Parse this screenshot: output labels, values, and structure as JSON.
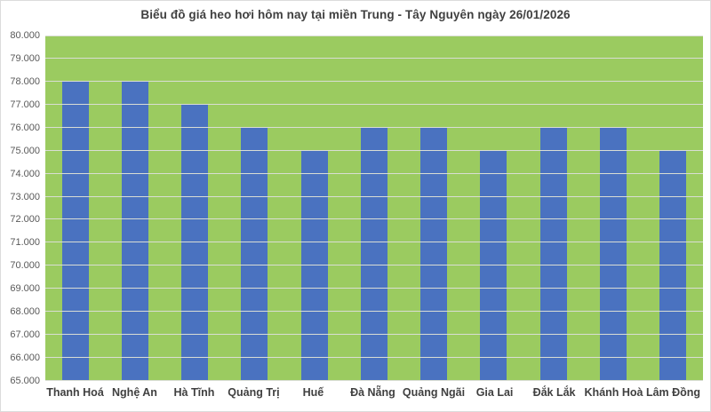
{
  "chart_data": {
    "type": "bar",
    "title": "Biểu đồ giá heo hơi hôm nay tại miền Trung - Tây Nguyên ngày 26/01/2026",
    "categories": [
      "Thanh Hoá",
      "Nghệ An",
      "Hà Tĩnh",
      "Quảng Trị",
      "Huế",
      "Đà Nẵng",
      "Quảng Ngãi",
      "Gia Lai",
      "Đắk Lắk",
      "Khánh Hoà",
      "Lâm Đồng"
    ],
    "values": [
      78000,
      78000,
      77000,
      76000,
      75000,
      76000,
      76000,
      75000,
      76000,
      76000,
      75000
    ],
    "xlabel": "",
    "ylabel": "",
    "ylim": [
      65000,
      80000
    ],
    "ytick_step": 1000,
    "ytick_labels": [
      "65.000",
      "66.000",
      "67.000",
      "68.000",
      "69.000",
      "70.000",
      "71.000",
      "72.000",
      "73.000",
      "74.000",
      "75.000",
      "76.000",
      "77.000",
      "78.000",
      "79.000",
      "80.000"
    ],
    "grid": true,
    "legend": "none",
    "bar_color": "#4a72c0",
    "plot_background": "#9bcb60",
    "gridline_color": "#d9ddd4",
    "title_color": "#404040",
    "ytick_color": "#595959",
    "xtick_color": "#404040"
  }
}
